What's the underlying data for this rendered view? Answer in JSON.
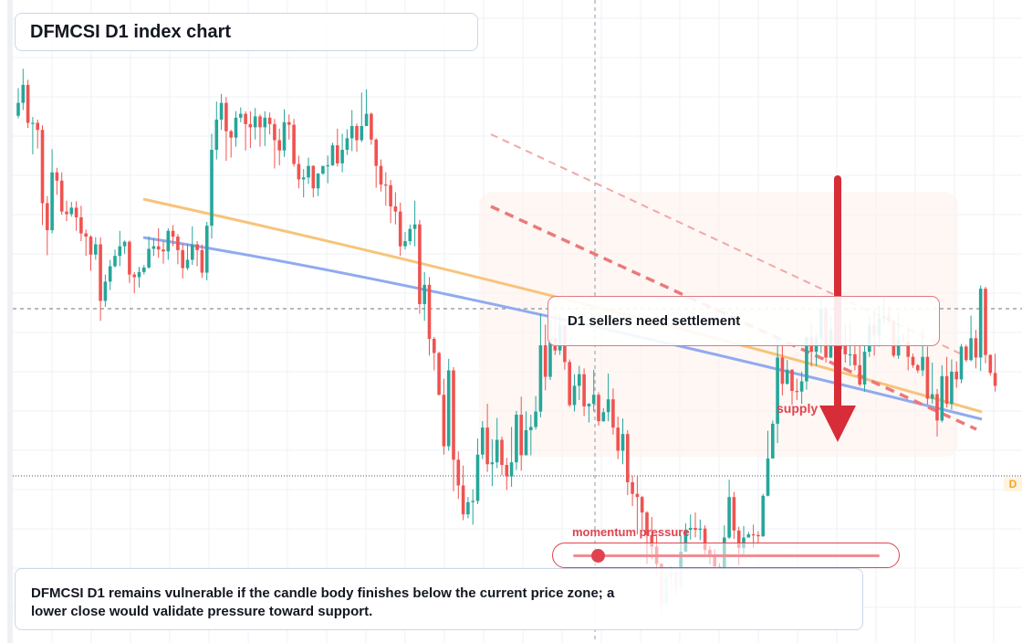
{
  "title": "DFMCSI D1 index chart",
  "callout": "D1 sellers need settlement",
  "supply_label": "supply",
  "momentum": {
    "label": "momentum pressure",
    "level": 0.08
  },
  "note": "DFMCSI D1 remains vulnerable if the candle body finishes below the current price zone; a lower close would validate pressure toward support.",
  "price_tag": "D",
  "colors": {
    "bull": "#26a69a",
    "bear": "#ef5350",
    "accent": "#e0434f",
    "orange_line": "#f7c47a",
    "blue_line": "#8fabef"
  },
  "chart_data": {
    "type": "candlestick",
    "symbol": "DFMCSI",
    "timeframe": "D1",
    "grid": true,
    "ylim": [
      0,
      100
    ],
    "candles": [
      [
        82.0,
        84.0,
        86.3,
        81.6
      ],
      [
        84.0,
        86.8,
        89.3,
        82.9
      ],
      [
        86.8,
        80.9,
        87.6,
        80.1
      ],
      [
        80.9,
        80.9,
        81.8,
        76.0
      ],
      [
        80.9,
        79.8,
        81.4,
        76.9
      ],
      [
        79.8,
        68.4,
        80.5,
        65.0
      ],
      [
        68.4,
        64.2,
        69.5,
        60.3
      ],
      [
        64.2,
        73.2,
        76.8,
        63.7
      ],
      [
        73.2,
        71.9,
        73.9,
        69.7
      ],
      [
        71.9,
        67.1,
        73.2,
        66.6
      ],
      [
        67.1,
        66.7,
        68.8,
        65.6
      ],
      [
        66.7,
        67.7,
        68.6,
        66.3
      ],
      [
        67.7,
        66.2,
        68.7,
        64.1
      ],
      [
        66.2,
        63.7,
        68.0,
        62.5
      ],
      [
        63.7,
        63.2,
        64.3,
        60.2
      ],
      [
        63.2,
        60.4,
        63.4,
        57.9
      ],
      [
        60.4,
        62.0,
        63.1,
        59.6
      ],
      [
        62.0,
        53.2,
        63.1,
        50.1
      ],
      [
        53.2,
        56.2,
        57.3,
        52.3
      ],
      [
        56.2,
        58.6,
        59.6,
        54.9
      ],
      [
        58.6,
        60.2,
        61.2,
        58.4
      ],
      [
        60.2,
        61.7,
        64.1,
        58.6
      ],
      [
        61.7,
        62.4,
        62.6,
        60.5
      ],
      [
        62.4,
        57.3,
        62.6,
        56.0
      ],
      [
        57.3,
        56.9,
        57.7,
        54.4
      ],
      [
        56.9,
        57.7,
        58.5,
        55.3
      ],
      [
        57.7,
        58.4,
        58.8,
        57.3
      ],
      [
        58.4,
        61.3,
        63.2,
        58.2
      ],
      [
        61.3,
        61.7,
        62.9,
        60.2
      ],
      [
        61.7,
        61.2,
        64.5,
        59.9
      ],
      [
        61.2,
        60.9,
        62.5,
        59.0
      ],
      [
        60.9,
        64.1,
        64.5,
        59.6
      ],
      [
        64.1,
        63.2,
        65.0,
        61.7
      ],
      [
        63.2,
        61.1,
        63.6,
        58.9
      ],
      [
        61.1,
        58.3,
        62.1,
        56.7
      ],
      [
        58.3,
        59.6,
        62.1,
        58.0
      ],
      [
        59.6,
        62.0,
        64.8,
        58.8
      ],
      [
        62.0,
        61.1,
        62.5,
        58.6
      ],
      [
        61.1,
        57.6,
        62.0,
        56.8
      ],
      [
        57.6,
        64.9,
        65.5,
        56.4
      ],
      [
        64.9,
        76.7,
        79.2,
        62.9
      ],
      [
        76.7,
        81.4,
        84.2,
        75.2
      ],
      [
        81.4,
        84.0,
        85.4,
        79.8
      ],
      [
        84.0,
        79.6,
        84.9,
        75.0
      ],
      [
        79.6,
        78.6,
        79.8,
        75.5
      ],
      [
        78.6,
        81.7,
        82.7,
        77.2
      ],
      [
        81.7,
        82.3,
        83.3,
        81.0
      ],
      [
        82.3,
        80.7,
        82.7,
        76.6
      ],
      [
        80.7,
        80.2,
        82.7,
        77.0
      ],
      [
        80.2,
        81.9,
        83.2,
        78.3
      ],
      [
        81.9,
        80.2,
        82.2,
        77.2
      ],
      [
        80.2,
        81.7,
        82.7,
        77.3
      ],
      [
        81.7,
        80.7,
        82.5,
        79.1
      ],
      [
        80.7,
        78.2,
        81.5,
        73.8
      ],
      [
        78.2,
        76.6,
        80.0,
        74.3
      ],
      [
        76.6,
        81.0,
        83.0,
        75.6
      ],
      [
        81.0,
        80.6,
        82.2,
        78.3
      ],
      [
        80.6,
        74.5,
        81.5,
        74.1
      ],
      [
        74.5,
        72.1,
        75.8,
        70.7
      ],
      [
        72.1,
        72.4,
        73.7,
        69.3
      ],
      [
        72.4,
        74.2,
        75.5,
        71.4
      ],
      [
        74.2,
        70.7,
        74.3,
        69.3
      ],
      [
        70.7,
        73.0,
        73.1,
        69.5
      ],
      [
        73.0,
        74.2,
        74.2,
        72.8
      ],
      [
        74.2,
        74.3,
        75.8,
        71.5
      ],
      [
        74.3,
        77.4,
        77.8,
        74.2
      ],
      [
        77.4,
        74.6,
        80.0,
        74.1
      ],
      [
        74.6,
        76.7,
        79.2,
        73.2
      ],
      [
        76.7,
        78.5,
        79.9,
        75.9
      ],
      [
        78.5,
        80.4,
        82.9,
        76.5
      ],
      [
        80.4,
        78.2,
        80.8,
        76.4
      ],
      [
        78.2,
        80.4,
        85.6,
        77.9
      ],
      [
        80.4,
        82.3,
        86.1,
        80.5
      ],
      [
        82.3,
        78.3,
        82.5,
        77.5
      ],
      [
        78.3,
        74.2,
        78.5,
        70.8
      ],
      [
        74.2,
        71.3,
        75.2,
        70.2
      ],
      [
        71.3,
        71.2,
        73.2,
        68.0
      ],
      [
        71.2,
        67.9,
        72.0,
        65.3
      ],
      [
        67.9,
        67.1,
        70.1,
        65.1
      ],
      [
        67.1,
        61.7,
        68.5,
        60.2
      ],
      [
        61.7,
        62.5,
        63.9,
        61.2
      ],
      [
        62.5,
        64.4,
        65.1,
        61.9
      ],
      [
        64.4,
        65.1,
        68.8,
        61.7
      ],
      [
        65.1,
        52.7,
        65.8,
        51.2
      ],
      [
        52.7,
        55.7,
        57.7,
        50.1
      ],
      [
        55.7,
        47.3,
        56.9,
        44.7
      ],
      [
        47.3,
        45.1,
        47.6,
        42.4
      ],
      [
        45.1,
        38.6,
        45.3,
        38.5
      ],
      [
        38.6,
        30.6,
        41.1,
        29.3
      ],
      [
        30.6,
        42.4,
        44.2,
        29.9
      ],
      [
        42.4,
        28.5,
        42.9,
        23.6
      ],
      [
        28.5,
        24.5,
        29.8,
        22.4
      ],
      [
        24.5,
        20.0,
        27.6,
        19.1
      ],
      [
        20.0,
        21.9,
        22.7,
        19.4
      ],
      [
        21.9,
        22.1,
        23.9,
        18.4
      ],
      [
        22.1,
        29.3,
        31.8,
        21.6
      ],
      [
        29.3,
        33.5,
        34.5,
        28.6
      ],
      [
        33.5,
        27.8,
        37.2,
        26.6
      ],
      [
        27.8,
        28.1,
        31.7,
        24.4
      ],
      [
        28.1,
        31.6,
        35.0,
        27.2
      ],
      [
        31.6,
        27.7,
        32.1,
        26.1
      ],
      [
        27.7,
        25.9,
        28.8,
        23.8
      ],
      [
        25.9,
        28.1,
        33.6,
        24.3
      ],
      [
        28.1,
        35.5,
        36.1,
        26.9
      ],
      [
        35.5,
        29.2,
        38.3,
        26.8
      ],
      [
        29.2,
        33.1,
        36.0,
        29.2
      ],
      [
        33.1,
        33.6,
        35.5,
        29.2
      ],
      [
        33.6,
        36.0,
        38.4,
        33.2
      ],
      [
        36.0,
        46.3,
        51.2,
        35.1
      ],
      [
        46.3,
        41.4,
        49.5,
        39.3
      ],
      [
        41.4,
        47.3,
        50.3,
        40.9
      ],
      [
        47.3,
        45.5,
        51.1,
        44.8
      ],
      [
        45.5,
        49.4,
        51.1,
        44.8
      ],
      [
        49.4,
        43.7,
        49.5,
        42.5
      ],
      [
        43.7,
        37.0,
        44.1,
        36.7
      ],
      [
        37.0,
        40.0,
        41.8,
        36.0
      ],
      [
        40.0,
        41.8,
        43.1,
        37.8
      ],
      [
        41.8,
        36.8,
        42.7,
        35.3
      ],
      [
        36.8,
        37.2,
        37.3,
        34.3
      ],
      [
        37.2,
        38.6,
        42.5,
        36.0
      ],
      [
        38.6,
        34.5,
        39.0,
        33.8
      ],
      [
        34.5,
        35.9,
        36.5,
        34.4
      ],
      [
        35.9,
        37.9,
        41.9,
        34.5
      ],
      [
        37.9,
        33.5,
        39.6,
        32.4
      ],
      [
        33.5,
        29.9,
        35.2,
        28.6
      ],
      [
        29.9,
        32.5,
        34.9,
        27.8
      ],
      [
        32.5,
        25.0,
        33.1,
        23.0
      ],
      [
        25.0,
        23.2,
        26.0,
        21.3
      ],
      [
        23.2,
        22.7,
        25.9,
        16.9
      ],
      [
        22.7,
        20.3,
        22.9,
        17.6
      ],
      [
        20.3,
        16.8,
        20.5,
        12.3
      ],
      [
        16.8,
        15.0,
        19.6,
        13.0
      ],
      [
        15.0,
        12.3,
        16.7,
        10.6
      ],
      [
        12.3,
        6.1,
        12.4,
        4.7
      ],
      [
        6.1,
        10.1,
        11.6,
        6.0
      ],
      [
        10.1,
        11.0,
        11.9,
        8.3
      ],
      [
        11.0,
        8.6,
        11.1,
        7.5
      ],
      [
        8.6,
        14.2,
        16.8,
        8.0
      ],
      [
        14.2,
        17.6,
        18.6,
        14.2
      ],
      [
        17.6,
        17.9,
        20.0,
        16.1
      ],
      [
        17.9,
        17.6,
        20.3,
        16.4
      ],
      [
        17.6,
        17.8,
        19.2,
        16.0
      ],
      [
        17.8,
        14.5,
        18.3,
        13.8
      ],
      [
        14.5,
        13.7,
        15.1,
        12.2
      ],
      [
        13.7,
        11.9,
        14.6,
        11.7
      ],
      [
        11.9,
        11.7,
        12.4,
        11.7
      ],
      [
        11.7,
        16.4,
        18.3,
        10.9
      ],
      [
        16.4,
        22.7,
        25.4,
        16.2
      ],
      [
        22.7,
        17.5,
        23.5,
        16.2
      ],
      [
        17.5,
        14.8,
        18.1,
        12.1
      ],
      [
        14.8,
        16.4,
        18.2,
        13.6
      ],
      [
        16.4,
        16.9,
        17.3,
        16.6
      ],
      [
        16.9,
        16.8,
        18.4,
        14.8
      ],
      [
        16.8,
        16.6,
        17.4,
        15.4
      ],
      [
        16.6,
        22.9,
        23.2,
        16.5
      ],
      [
        22.9,
        28.7,
        33.0,
        22.8
      ],
      [
        28.7,
        34.1,
        34.6,
        28.7
      ],
      [
        34.1,
        44.4,
        47.5,
        31.1
      ],
      [
        44.4,
        40.3,
        46.3,
        38.5
      ],
      [
        40.3,
        42.5,
        44.0,
        40.2
      ],
      [
        42.5,
        39.2,
        42.6,
        37.0
      ],
      [
        39.2,
        39.1,
        41.1,
        37.8
      ],
      [
        39.1,
        40.7,
        42.2,
        37.2
      ],
      [
        40.7,
        47.6,
        47.7,
        39.4
      ],
      [
        47.6,
        45.3,
        49.9,
        43.0
      ],
      [
        45.3,
        47.4,
        48.1,
        43.1
      ],
      [
        47.4,
        51.9,
        53.5,
        45.1
      ],
      [
        51.9,
        44.4,
        52.3,
        43.6
      ],
      [
        44.4,
        48.7,
        50.9,
        44.3
      ],
      [
        48.7,
        45.7,
        50.0,
        45.4
      ],
      [
        45.7,
        46.5,
        51.1,
        43.2
      ],
      [
        46.5,
        44.9,
        49.8,
        43.6
      ],
      [
        44.9,
        44.9,
        49.8,
        43.1
      ],
      [
        44.9,
        43.2,
        46.9,
        42.4
      ],
      [
        43.2,
        40.2,
        46.3,
        39.9
      ],
      [
        40.2,
        45.3,
        46.3,
        39.1
      ],
      [
        45.3,
        49.5,
        51.1,
        44.5
      ],
      [
        49.5,
        47.8,
        51.7,
        44.7
      ],
      [
        47.8,
        50.5,
        52.5,
        46.1
      ],
      [
        50.5,
        50.8,
        53.8,
        49.6
      ],
      [
        50.8,
        50.1,
        52.4,
        49.4
      ],
      [
        50.1,
        44.7,
        50.3,
        44.4
      ],
      [
        44.7,
        47.1,
        51.2,
        44.2
      ],
      [
        47.1,
        46.9,
        48.1,
        46.7
      ],
      [
        46.9,
        44.5,
        49.2,
        42.4
      ],
      [
        44.5,
        43.2,
        45.0,
        42.8
      ],
      [
        43.2,
        42.4,
        43.4,
        42.0
      ],
      [
        42.4,
        44.5,
        48.6,
        41.5
      ],
      [
        44.5,
        38.0,
        46.1,
        37.1
      ],
      [
        38.0,
        38.7,
        43.6,
        37.2
      ],
      [
        38.7,
        34.6,
        39.5,
        32.1
      ],
      [
        34.6,
        41.5,
        43.2,
        34.3
      ],
      [
        41.5,
        37.2,
        44.5,
        36.6
      ],
      [
        37.2,
        42.2,
        44.1,
        36.3
      ],
      [
        42.2,
        41.0,
        43.8,
        39.7
      ],
      [
        41.0,
        46.1,
        46.5,
        40.4
      ],
      [
        46.1,
        44.0,
        46.4,
        43.7
      ],
      [
        44.0,
        47.4,
        50.9,
        43.8
      ],
      [
        47.4,
        44.4,
        48.7,
        42.7
      ],
      [
        44.4,
        55.1,
        55.6,
        42.3
      ],
      [
        55.1,
        44.8,
        55.4,
        43.5
      ],
      [
        44.8,
        42.0,
        44.9,
        41.6
      ],
      [
        42.0,
        40.0,
        45.0,
        39.1
      ]
    ],
    "indicators": [
      {
        "name": "orange-line",
        "color": "#f7c47a"
      },
      {
        "name": "blue-line",
        "color": "#8fabef"
      }
    ]
  }
}
